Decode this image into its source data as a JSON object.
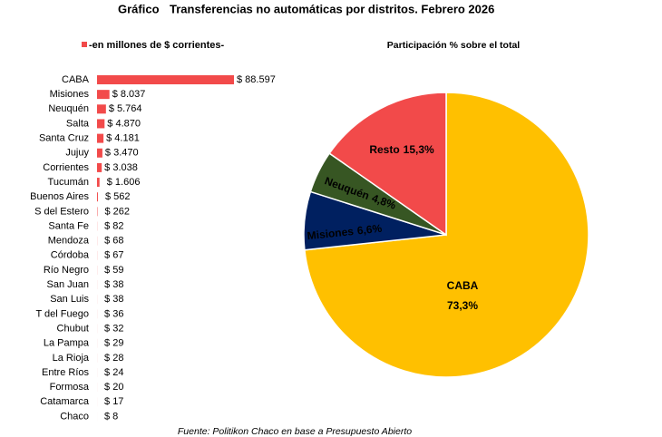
{
  "title_label": "Gráfico",
  "title": "Transferencias no automáticas por distritos. Febrero 2026",
  "source": "Fuente: Politikon Chaco en base a Presupuesto Abierto",
  "chart_data": [
    {
      "type": "hbar",
      "categories": [
        "CABA",
        "Misiones",
        "Neuquén",
        "Salta",
        "Santa Cruz",
        "Jujuy",
        "Corrientes",
        "Tucumán",
        "Buenos Aires",
        "S del Estero",
        "Santa Fe",
        "Mendoza",
        "Córdoba",
        "Río Negro",
        "San Juan",
        "San Luis",
        "T del Fuego",
        "Chubut",
        "La Pampa",
        "La Rioja",
        "Entre Ríos",
        "Formosa",
        "Catamarca",
        "Chaco"
      ],
      "series": [
        {
          "name": "-en millones de $ corrientes-",
          "color": "#f24a4a",
          "values": [
            88597,
            8037,
            5764,
            4870,
            4181,
            3470,
            3038,
            1606,
            562,
            262,
            82,
            68,
            67,
            59,
            38,
            38,
            36,
            32,
            29,
            28,
            24,
            20,
            17,
            8
          ],
          "value_labels": [
            "$ 88.597",
            "$ 8.037",
            "$ 5.764",
            "$ 4.870",
            "$ 4.181",
            "$ 3.470",
            "$ 3.038",
            "$ 1.606",
            "$ 562",
            "$ 262",
            "$ 82",
            "$ 68",
            "$ 67",
            "$ 59",
            "$ 38",
            "$ 38",
            "$ 36",
            "$ 32",
            "$ 29",
            "$ 28",
            "$ 24",
            "$ 20",
            "$ 17",
            "$ 8"
          ]
        }
      ]
    },
    {
      "type": "pie",
      "title": "Participación % sobre el total",
      "categories": [
        "CABA",
        "Misiones",
        "Neuquén",
        "Resto"
      ],
      "values": [
        73.3,
        6.6,
        4.8,
        15.3
      ],
      "value_labels": [
        "73,3%",
        "6,6%",
        "4,8%",
        "15,3%"
      ],
      "colors": [
        "#ffc000",
        "#002060",
        "#375623",
        "#f24a4a"
      ]
    }
  ]
}
